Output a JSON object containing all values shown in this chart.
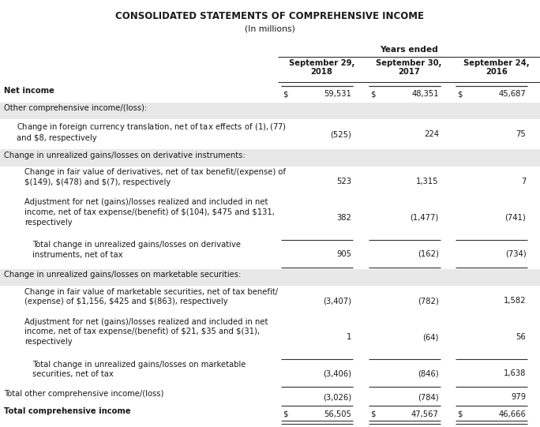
{
  "title": "CONSOLIDATED STATEMENTS OF COMPREHENSIVE INCOME",
  "subtitle": "(In millions)",
  "col_header_group": "Years ended",
  "col_headers": [
    "September 29,\n2018",
    "September 30,\n2017",
    "September 24,\n2016"
  ],
  "rows": [
    {
      "label": "Net income",
      "vals": [
        "59,531",
        "48,351",
        "45,687"
      ],
      "indent": 0,
      "bold": true,
      "dollar_sign": true,
      "bg": "white",
      "top_line": true,
      "bottom_line": false,
      "double_bottom": false
    },
    {
      "label": "Other comprehensive income/(loss):",
      "vals": [
        "",
        "",
        ""
      ],
      "indent": 0,
      "bold": false,
      "dollar_sign": false,
      "bg": "#e8e8e8",
      "top_line": false,
      "bottom_line": false,
      "double_bottom": false
    },
    {
      "label": "Change in foreign currency translation, net of tax effects of $(1), $(77)\nand $8, respectively",
      "vals": [
        "(525)",
        "224",
        "75"
      ],
      "indent": 1,
      "bold": false,
      "dollar_sign": false,
      "bg": "white",
      "top_line": false,
      "bottom_line": false,
      "double_bottom": false
    },
    {
      "label": "Change in unrealized gains/losses on derivative instruments:",
      "vals": [
        "",
        "",
        ""
      ],
      "indent": 0,
      "bold": false,
      "dollar_sign": false,
      "bg": "#e8e8e8",
      "top_line": false,
      "bottom_line": false,
      "double_bottom": false
    },
    {
      "label": "Change in fair value of derivatives, net of tax benefit/(expense) of\n$(149), $(478) and $(7), respectively",
      "vals": [
        "523",
        "1,315",
        "7"
      ],
      "indent": 2,
      "bold": false,
      "dollar_sign": false,
      "bg": "white",
      "top_line": false,
      "bottom_line": false,
      "double_bottom": false
    },
    {
      "label": "Adjustment for net (gains)/losses realized and included in net\nincome, net of tax expense/(benefit) of $(104), $475 and $131,\nrespectively",
      "vals": [
        "382",
        "(1,477)",
        "(741)"
      ],
      "indent": 2,
      "bold": false,
      "dollar_sign": false,
      "bg": "white",
      "top_line": false,
      "bottom_line": false,
      "double_bottom": false
    },
    {
      "label": "Total change in unrealized gains/losses on derivative\ninstruments, net of tax",
      "vals": [
        "905",
        "(162)",
        "(734)"
      ],
      "indent": 3,
      "bold": false,
      "dollar_sign": false,
      "bg": "white",
      "top_line": true,
      "bottom_line": true,
      "double_bottom": false
    },
    {
      "label": "Change in unrealized gains/losses on marketable securities:",
      "vals": [
        "",
        "",
        ""
      ],
      "indent": 0,
      "bold": false,
      "dollar_sign": false,
      "bg": "#e8e8e8",
      "top_line": false,
      "bottom_line": false,
      "double_bottom": false
    },
    {
      "label": "Change in fair value of marketable securities, net of tax benefit/\n(expense) of $1,156, $425 and $(863), respectively",
      "vals": [
        "(3,407)",
        "(782)",
        "1,582"
      ],
      "indent": 2,
      "bold": false,
      "dollar_sign": false,
      "bg": "white",
      "top_line": false,
      "bottom_line": false,
      "double_bottom": false
    },
    {
      "label": "Adjustment for net (gains)/losses realized and included in net\nincome, net of tax expense/(benefit) of $21, $35 and $(31),\nrespectively",
      "vals": [
        "1",
        "(64)",
        "56"
      ],
      "indent": 2,
      "bold": false,
      "dollar_sign": false,
      "bg": "white",
      "top_line": false,
      "bottom_line": false,
      "double_bottom": false
    },
    {
      "label": "Total change in unrealized gains/losses on marketable\nsecurities, net of tax",
      "vals": [
        "(3,406)",
        "(846)",
        "1,638"
      ],
      "indent": 3,
      "bold": false,
      "dollar_sign": false,
      "bg": "white",
      "top_line": true,
      "bottom_line": true,
      "double_bottom": false
    },
    {
      "label": "Total other comprehensive income/(loss)",
      "vals": [
        "(3,026)",
        "(784)",
        "979"
      ],
      "indent": 0,
      "bold": false,
      "dollar_sign": false,
      "bg": "white",
      "top_line": false,
      "bottom_line": false,
      "double_bottom": false
    },
    {
      "label": "Total comprehensive income",
      "vals": [
        "56,505",
        "47,567",
        "46,666"
      ],
      "indent": 0,
      "bold": true,
      "dollar_sign": true,
      "bg": "white",
      "top_line": true,
      "bottom_line": true,
      "double_bottom": true
    }
  ],
  "bg_color": "white",
  "text_color": "#1a1a1a",
  "line_color": "#333333",
  "font_size": 7.2,
  "title_font_size": 8.5,
  "subtitle_font_size": 7.8
}
